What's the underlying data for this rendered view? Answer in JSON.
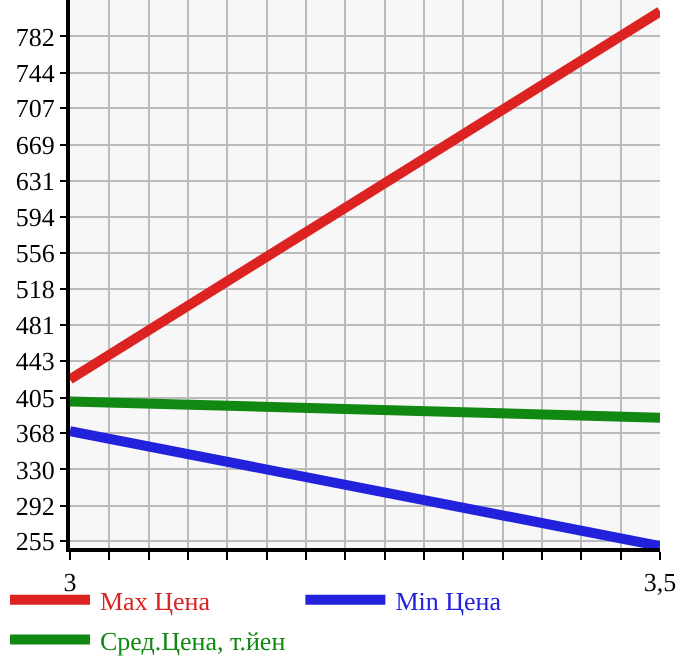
{
  "chart_data": {
    "type": "line",
    "x": [
      3,
      3.5
    ],
    "series": [
      {
        "name": "Max Цена",
        "color": "#dd2222",
        "values": [
          424,
          808
        ]
      },
      {
        "name": "Min Цена",
        "color": "#2222dd",
        "values": [
          370,
          250
        ]
      },
      {
        "name": "Сред.Цена, т.йен",
        "color": "#118811",
        "values": [
          401,
          384
        ]
      }
    ],
    "xlim": [
      3,
      3.5
    ],
    "xticks": [
      {
        "value": 3,
        "label": "3"
      },
      {
        "value": 3.0333,
        "label": null
      },
      {
        "value": 3.0667,
        "label": null
      },
      {
        "value": 3.1,
        "label": null
      },
      {
        "value": 3.1333,
        "label": null
      },
      {
        "value": 3.1667,
        "label": null
      },
      {
        "value": 3.2,
        "label": null
      },
      {
        "value": 3.2333,
        "label": null
      },
      {
        "value": 3.2667,
        "label": null
      },
      {
        "value": 3.3,
        "label": null
      },
      {
        "value": 3.3333,
        "label": null
      },
      {
        "value": 3.3667,
        "label": null
      },
      {
        "value": 3.4,
        "label": null
      },
      {
        "value": 3.4333,
        "label": null
      },
      {
        "value": 3.4667,
        "label": null
      },
      {
        "value": 3.5,
        "label": "3,5"
      }
    ],
    "ylim": [
      248,
      820
    ],
    "yticks": [
      255,
      292,
      330,
      368,
      405,
      443,
      481,
      518,
      556,
      594,
      631,
      669,
      707,
      744,
      782
    ],
    "grid": true,
    "legend": "bottom",
    "marker": "none",
    "line_style": "solid"
  }
}
